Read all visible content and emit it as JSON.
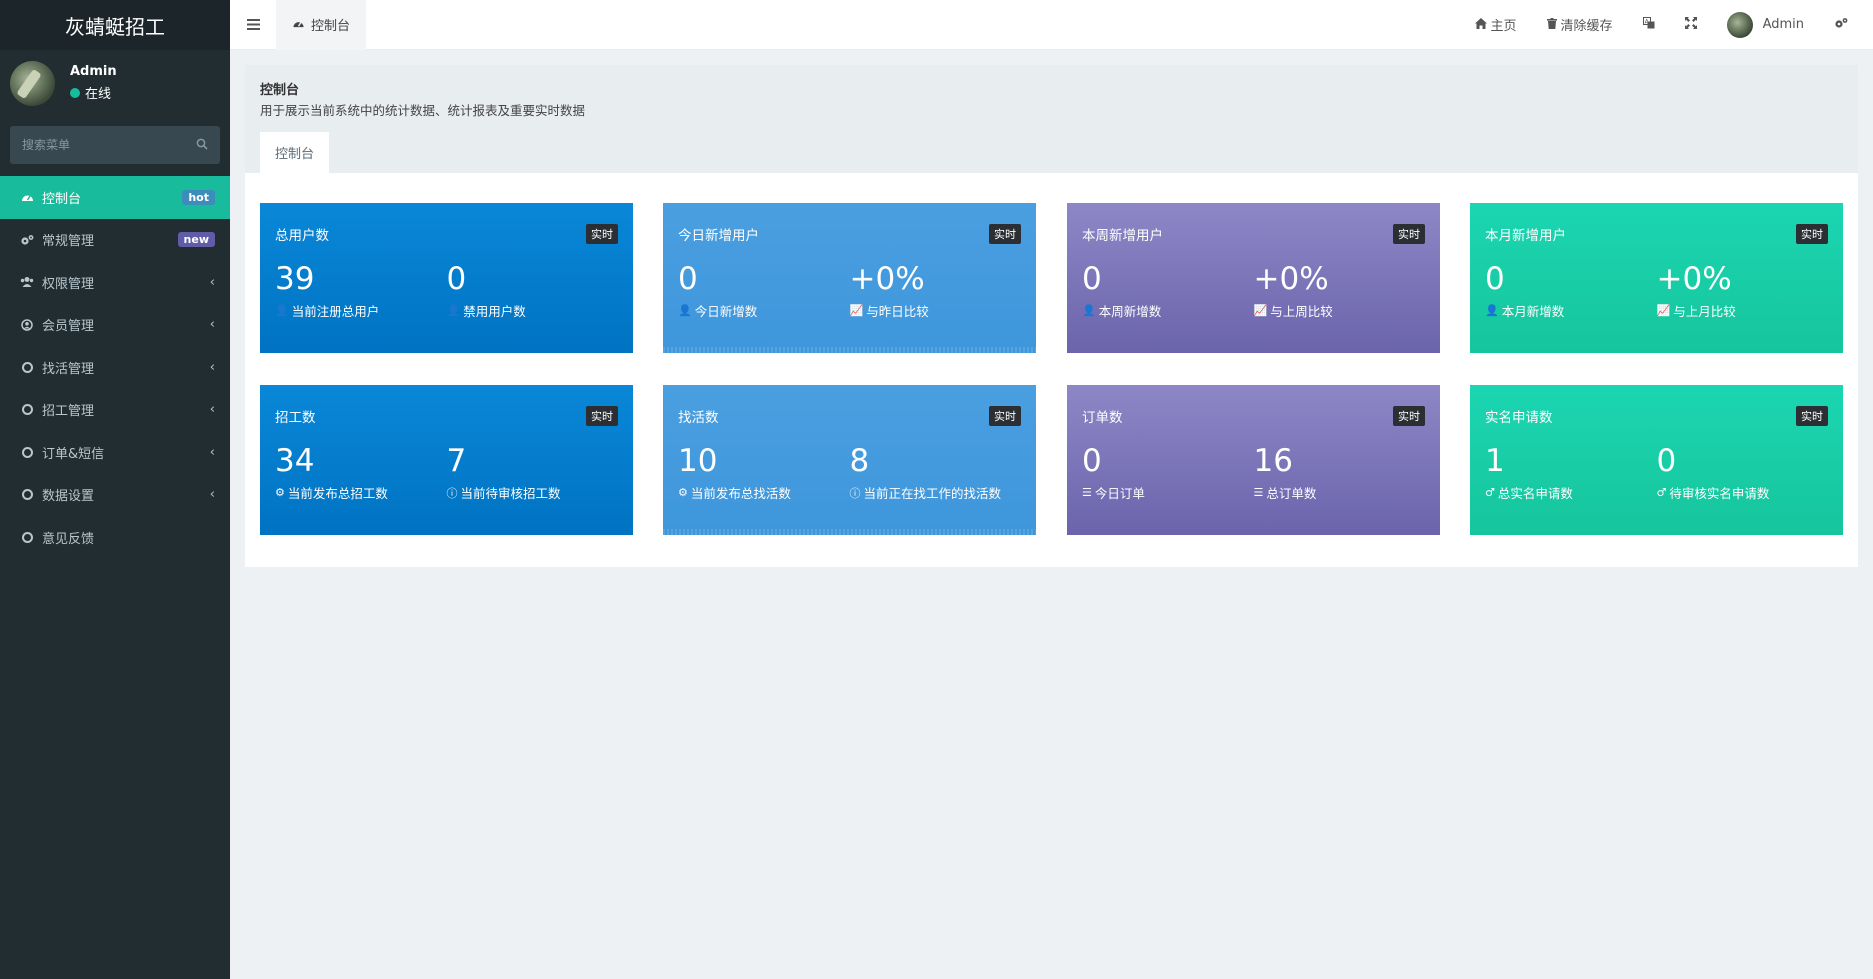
{
  "app": {
    "brand": "灰蜻蜓招工"
  },
  "user": {
    "name": "Admin",
    "status": "在线"
  },
  "search": {
    "placeholder": "搜索菜单"
  },
  "sidebar": {
    "items": [
      {
        "label": "控制台",
        "icon": "dashboard-icon",
        "badge": "hot",
        "active": true
      },
      {
        "label": "常规管理",
        "icon": "cogs-icon",
        "badge": "new"
      },
      {
        "label": "权限管理",
        "icon": "users-icon",
        "chevron": true
      },
      {
        "label": "会员管理",
        "icon": "user-circle-icon",
        "chevron": true
      },
      {
        "label": "找活管理",
        "icon": "circle-icon",
        "chevron": true
      },
      {
        "label": "招工管理",
        "icon": "circle-icon",
        "chevron": true
      },
      {
        "label": "订单&短信",
        "icon": "circle-icon",
        "chevron": true
      },
      {
        "label": "数据设置",
        "icon": "circle-icon",
        "chevron": true
      },
      {
        "label": "意见反馈",
        "icon": "circle-icon"
      }
    ]
  },
  "topbar": {
    "tab_label": "控制台",
    "home_label": "主页",
    "clear_cache_label": "清除缓存",
    "admin_label": "Admin"
  },
  "panel": {
    "title": "控制台",
    "description": "用于展示当前系统中的统计数据、统计报表及重要实时数据",
    "tab": "控制台"
  },
  "realtime_badge": "实时",
  "cards": [
    {
      "title": "总用户数",
      "color": "blue",
      "stats": [
        {
          "value": "39",
          "label": "当前注册总用户",
          "icon": "user-icon"
        },
        {
          "value": "0",
          "label": "禁用用户数",
          "icon": "user-times-icon"
        }
      ]
    },
    {
      "title": "今日新增用户",
      "color": "lblue",
      "stats": [
        {
          "value": "0",
          "label": "今日新增数",
          "icon": "user-plus-icon"
        },
        {
          "value": "+0%",
          "label": "与昨日比较",
          "icon": "line-chart-icon"
        }
      ]
    },
    {
      "title": "本周新增用户",
      "color": "purple",
      "stats": [
        {
          "value": "0",
          "label": "本周新增数",
          "icon": "user-plus-icon"
        },
        {
          "value": "+0%",
          "label": "与上周比较",
          "icon": "line-chart-icon"
        }
      ]
    },
    {
      "title": "本月新增用户",
      "color": "green",
      "stats": [
        {
          "value": "0",
          "label": "本月新增数",
          "icon": "user-plus-icon"
        },
        {
          "value": "+0%",
          "label": "与上月比较",
          "icon": "line-chart-icon"
        }
      ]
    },
    {
      "title": "招工数",
      "color": "blue",
      "stats": [
        {
          "value": "34",
          "label": "当前发布总招工数",
          "icon": "cubes-icon"
        },
        {
          "value": "7",
          "label": "当前待审核招工数",
          "icon": "info-circle-icon"
        }
      ]
    },
    {
      "title": "找活数",
      "color": "lblue",
      "stats": [
        {
          "value": "10",
          "label": "当前发布总找活数",
          "icon": "cubes-icon"
        },
        {
          "value": "8",
          "label": "当前正在找工作的找活数",
          "icon": "info-circle-icon"
        }
      ]
    },
    {
      "title": "订单数",
      "color": "purple",
      "stats": [
        {
          "value": "0",
          "label": "今日订单",
          "icon": "bars-icon"
        },
        {
          "value": "16",
          "label": "总订单数",
          "icon": "bars-icon"
        }
      ]
    },
    {
      "title": "实名申请数",
      "color": "green",
      "stats": [
        {
          "value": "1",
          "label": "总实名申请数",
          "icon": "male-icon"
        },
        {
          "value": "0",
          "label": "待审核实名申请数",
          "icon": "male-icon"
        }
      ]
    }
  ]
}
